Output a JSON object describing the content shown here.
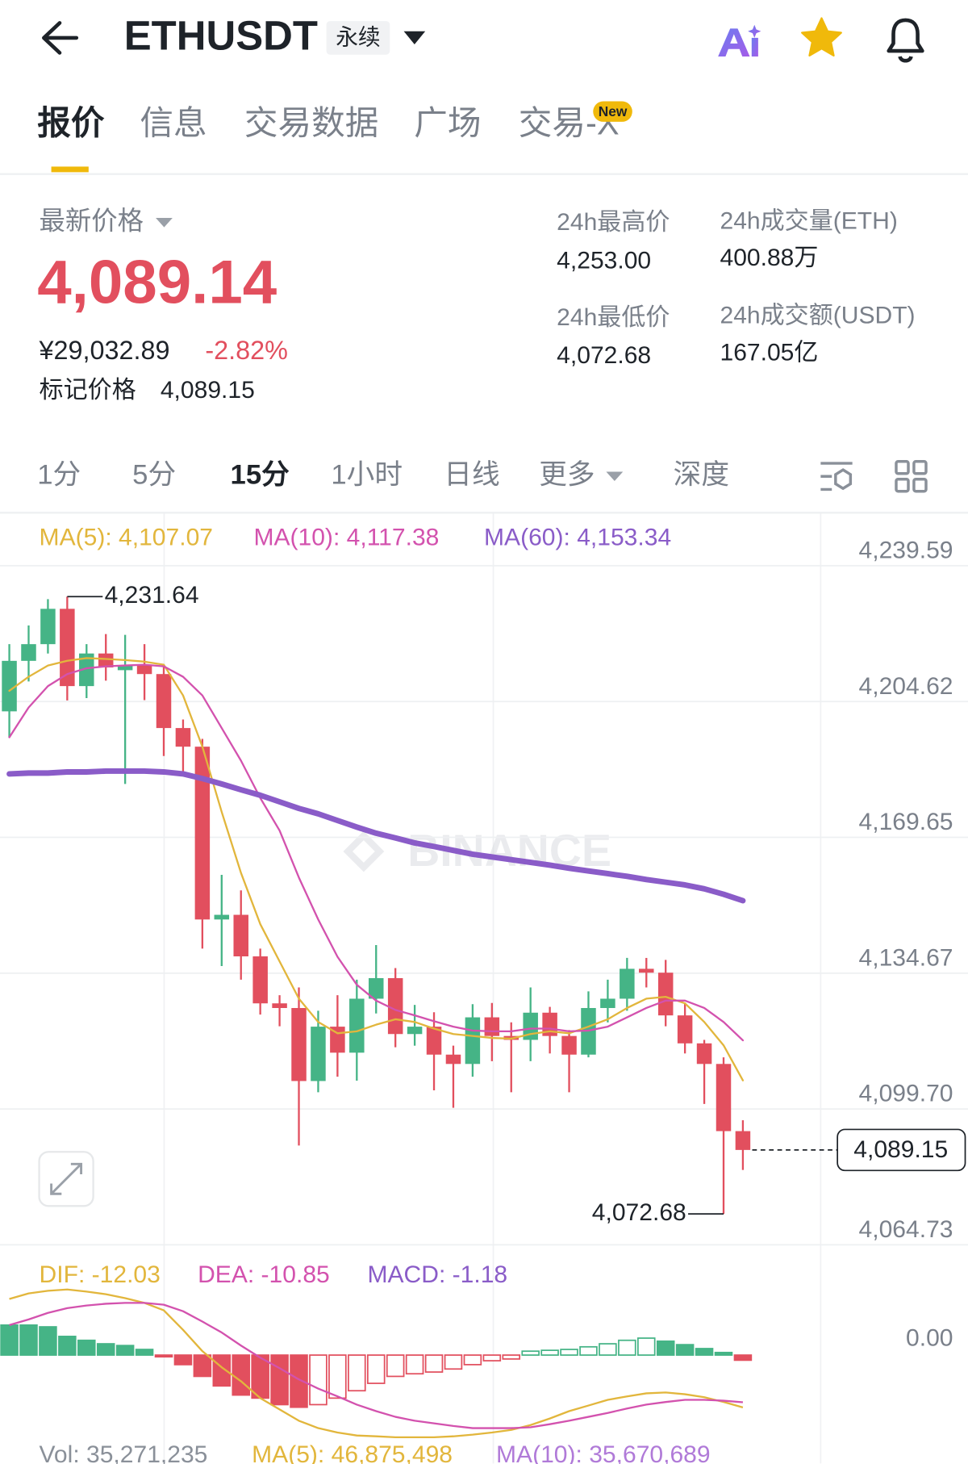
{
  "header": {
    "symbol": "ETHUSDT",
    "contract": "永续"
  },
  "tabs": {
    "items": [
      "报价",
      "信息",
      "交易数据",
      "广场",
      "交易-X"
    ],
    "badge": "New"
  },
  "ticker": {
    "last_price_label": "最新价格",
    "last_price": "4,089.14",
    "cny_price": "¥29,032.89",
    "change": "-2.82%",
    "mark_price_label": "标记价格",
    "mark_price": "4,089.15",
    "stats": [
      {
        "label": "24h最高价",
        "value": "4,253.00"
      },
      {
        "label": "24h成交量(ETH)",
        "value": "400.88万"
      },
      {
        "label": "24h最低价",
        "value": "4,072.68"
      },
      {
        "label": "24h成交额(USDT)",
        "value": "167.05亿"
      }
    ]
  },
  "intervals": {
    "items": [
      "1分",
      "5分",
      "15分",
      "1小时",
      "日线",
      "更多",
      "深度"
    ]
  },
  "chart_data": [
    {
      "type": "candlestick",
      "watermark": "BINANCE",
      "up_color": "#45b486",
      "down_color": "#e24f5e",
      "ylim": [
        4064.73,
        4253.0
      ],
      "yticks": [
        {
          "value": 4239.59,
          "label": "4,239.59"
        },
        {
          "value": 4204.62,
          "label": "4,204.62"
        },
        {
          "value": 4169.65,
          "label": "4,169.65"
        },
        {
          "value": 4134.67,
          "label": "4,134.67"
        },
        {
          "value": 4099.7,
          "label": "4,099.70"
        },
        {
          "value": 4064.73,
          "label": "4,064.73"
        }
      ],
      "grid": true,
      "open": [
        4202.1,
        4215.1,
        4219.4,
        4228.5,
        4208.6,
        4217.0,
        4212.7,
        4214.0,
        4211.7,
        4197.8,
        4193.0,
        4148.5,
        4149.7,
        4139.0,
        4126.9,
        4125.7,
        4106.9,
        4120.9,
        4114.2,
        4128.1,
        4133.4,
        4119.0,
        4120.9,
        4113.7,
        4111.3,
        4123.3,
        4118.5,
        4117.5,
        4124.5,
        4118.5,
        4113.7,
        4125.7,
        4128.1,
        4135.8,
        4134.8,
        4123.8,
        4116.6,
        4111.3,
        4094.0
      ],
      "high": [
        4219.4,
        4224.2,
        4231.0,
        4231.64,
        4219.4,
        4222.0,
        4221.8,
        4219.4,
        4214.0,
        4200.0,
        4195.0,
        4160.0,
        4156.0,
        4141.0,
        4129.0,
        4131.0,
        4125.0,
        4129.0,
        4133.0,
        4141.9,
        4136.0,
        4126.5,
        4124.6,
        4116.0,
        4126.7,
        4127.0,
        4122.0,
        4131.0,
        4126.0,
        4120.0,
        4130.0,
        4133.0,
        4138.6,
        4138.6,
        4138.1,
        4127.0,
        4117.5,
        4113.0,
        4096.8
      ],
      "low": [
        4195.4,
        4209.8,
        4217.0,
        4204.9,
        4205.5,
        4210.0,
        4183.4,
        4205.0,
        4190.6,
        4186.0,
        4141.0,
        4136.5,
        4133.0,
        4124.0,
        4121.0,
        4090.3,
        4104.0,
        4108.0,
        4107.0,
        4124.3,
        4115.6,
        4116.0,
        4104.5,
        4100.0,
        4108.0,
        4112.0,
        4104.0,
        4112.0,
        4114.0,
        4104.0,
        4113.0,
        4122.0,
        4125.0,
        4131.0,
        4121.0,
        4114.0,
        4101.0,
        4072.68,
        4084.0
      ],
      "close": [
        4215.1,
        4219.4,
        4228.5,
        4208.6,
        4217.0,
        4213.4,
        4214.0,
        4211.7,
        4197.8,
        4193.0,
        4148.5,
        4149.7,
        4139.0,
        4126.9,
        4125.7,
        4106.9,
        4120.9,
        4114.2,
        4128.1,
        4133.4,
        4119.0,
        4120.9,
        4113.7,
        4111.3,
        4123.3,
        4118.5,
        4117.5,
        4124.5,
        4118.5,
        4113.7,
        4125.7,
        4128.1,
        4135.8,
        4134.8,
        4123.8,
        4116.6,
        4111.3,
        4094.0,
        4089.15
      ],
      "series": [
        {
          "label": "MA(5): 4,107.07",
          "color": "#e2b63c",
          "width": 2,
          "values": [
            4207.4,
            4211.0,
            4213.9,
            4215.1,
            4215.8,
            4215.6,
            4215.3,
            4214.9,
            4214.1,
            4206.2,
            4193.0,
            4176.2,
            4160.5,
            4147.3,
            4137.7,
            4128.1,
            4122.1,
            4119.2,
            4119.7,
            4121.4,
            4122.8,
            4122.1,
            4120.4,
            4119.0,
            4118.5,
            4118.0,
            4117.8,
            4119.0,
            4119.7,
            4119.2,
            4120.9,
            4122.8,
            4125.7,
            4128.1,
            4128.6,
            4126.9,
            4122.1,
            4116.1,
            4107.07
          ]
        },
        {
          "label": "MA(10): 4,117.38",
          "color": "#d352ae",
          "width": 2,
          "values": [
            4195.4,
            4203.1,
            4208.6,
            4211.7,
            4213.2,
            4213.7,
            4213.9,
            4214.1,
            4213.7,
            4211.0,
            4206.2,
            4197.8,
            4189.4,
            4179.8,
            4171.4,
            4159.3,
            4148.5,
            4138.9,
            4131.7,
            4127.6,
            4125.2,
            4123.8,
            4122.3,
            4120.9,
            4119.9,
            4119.7,
            4119.7,
            4120.4,
            4120.4,
            4119.7,
            4119.9,
            4120.9,
            4123.3,
            4125.7,
            4127.6,
            4127.6,
            4125.7,
            4122.1,
            4117.38
          ]
        },
        {
          "label": "MA(60): 4,153.34",
          "color": "#8a5cc8",
          "width": 6,
          "values": [
            4186.0,
            4186.2,
            4186.2,
            4186.5,
            4186.5,
            4186.7,
            4186.7,
            4186.7,
            4186.5,
            4186.0,
            4184.8,
            4183.4,
            4181.9,
            4180.5,
            4178.8,
            4177.1,
            4175.7,
            4174.0,
            4172.3,
            4170.7,
            4169.5,
            4168.2,
            4167.3,
            4166.3,
            4165.3,
            4164.6,
            4163.9,
            4163.2,
            4162.5,
            4161.7,
            4161.0,
            4160.3,
            4159.6,
            4158.8,
            4158.1,
            4157.4,
            4156.4,
            4155.0,
            4153.34
          ]
        }
      ],
      "max_marker": {
        "value": 4231.64,
        "label": "4,231.64"
      },
      "min_marker": {
        "value": 4072.68,
        "label": "4,072.68"
      },
      "last_price": {
        "value": 4089.15,
        "label": "4,089.15"
      }
    },
    {
      "type": "macd",
      "ylim": [
        -20,
        24
      ],
      "yticks": [
        {
          "value": 0,
          "label": "0.00"
        }
      ],
      "series": [
        {
          "label": "DIF: -12.03",
          "color": "#e2b63c",
          "values": [
            12.9,
            14.2,
            14.8,
            15.1,
            14.6,
            14.0,
            13.1,
            12.0,
            10.3,
            5.8,
            0.9,
            -2.8,
            -6.0,
            -9.9,
            -12.5,
            -15.1,
            -16.8,
            -17.8,
            -18.5,
            -18.7,
            -18.9,
            -18.9,
            -18.9,
            -18.7,
            -18.3,
            -17.8,
            -17.2,
            -16.1,
            -14.6,
            -12.9,
            -11.6,
            -10.3,
            -9.5,
            -8.8,
            -8.6,
            -9.0,
            -9.7,
            -10.8,
            -12.03
          ]
        },
        {
          "label": "DEA: -10.85",
          "color": "#d352ae",
          "values": [
            6.9,
            8.2,
            9.7,
            10.8,
            11.4,
            11.8,
            12.0,
            12.0,
            11.6,
            10.1,
            7.7,
            5.2,
            2.2,
            -0.6,
            -3.0,
            -5.6,
            -7.7,
            -9.5,
            -11.4,
            -12.9,
            -14.2,
            -15.1,
            -15.7,
            -16.3,
            -16.8,
            -16.8,
            -16.8,
            -16.6,
            -15.9,
            -15.1,
            -14.2,
            -13.3,
            -12.3,
            -11.4,
            -10.8,
            -10.3,
            -10.3,
            -10.5,
            -10.85
          ]
        }
      ],
      "histogram": {
        "label": "MACD: -1.18",
        "label_color": "#8a5cc8",
        "up_color": "#45b486",
        "down_color": "#e24f5e",
        "values": [
          6.9,
          6.9,
          6.5,
          4.3,
          3.4,
          2.6,
          2.2,
          1.3,
          -0.4,
          -2.2,
          -4.9,
          -7.1,
          -9.2,
          -9.9,
          -11.4,
          -12.0,
          -11.4,
          -9.9,
          -8.2,
          -6.5,
          -4.9,
          -4.3,
          -3.9,
          -3.2,
          -2.2,
          -1.3,
          -0.9,
          0.9,
          1.1,
          1.3,
          1.9,
          2.6,
          3.4,
          3.9,
          3.2,
          2.4,
          1.5,
          0.6,
          -1.18
        ]
      }
    }
  ],
  "volume": {
    "legend": [
      "Vol: 35,271,235",
      "MA(5): 46,875,498",
      "MA(10): 35,670,689"
    ]
  }
}
